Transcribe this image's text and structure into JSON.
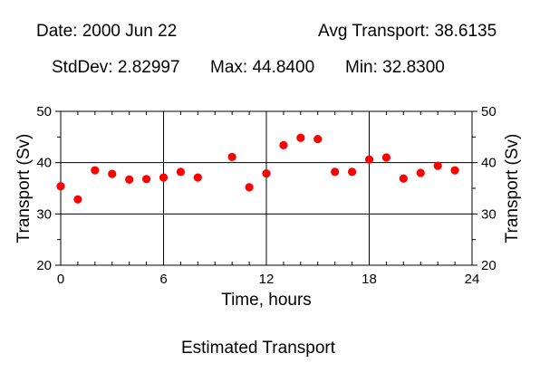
{
  "stats": {
    "date": "Date: 2000 Jun 22",
    "avg": "Avg Transport: 38.6135",
    "stddev": "StdDev: 2.82997",
    "max": "Max: 44.8400",
    "min": "Min: 32.8300"
  },
  "caption": "Estimated Transport",
  "colors": {
    "marker": "#ff0000",
    "axis": "#000000",
    "background": "#ffffff"
  },
  "chart_data": {
    "type": "scatter",
    "title": "Estimated Transport",
    "xlabel": "Time, hours",
    "ylabel": "Transport (Sv)",
    "ylabel_right": "Transport (Sv)",
    "xlim": [
      0,
      24
    ],
    "ylim": [
      20,
      50
    ],
    "xticks": [
      "0",
      "6",
      "12",
      "18",
      "24"
    ],
    "yticks": [
      "20",
      "30",
      "40",
      "50"
    ],
    "grid": true,
    "series": [
      {
        "x": [
          0,
          1,
          2,
          3,
          4,
          5,
          6,
          7,
          8,
          10,
          11,
          12,
          13,
          14,
          15,
          16,
          17,
          18,
          19,
          20,
          21,
          22,
          23
        ],
        "y": [
          35.4,
          32.83,
          38.5,
          37.8,
          36.7,
          36.8,
          37.1,
          38.2,
          37.1,
          41.1,
          35.2,
          37.9,
          43.4,
          44.84,
          44.6,
          38.2,
          38.2,
          40.6,
          41.0,
          36.9,
          38.0,
          39.4,
          38.5
        ]
      }
    ]
  }
}
